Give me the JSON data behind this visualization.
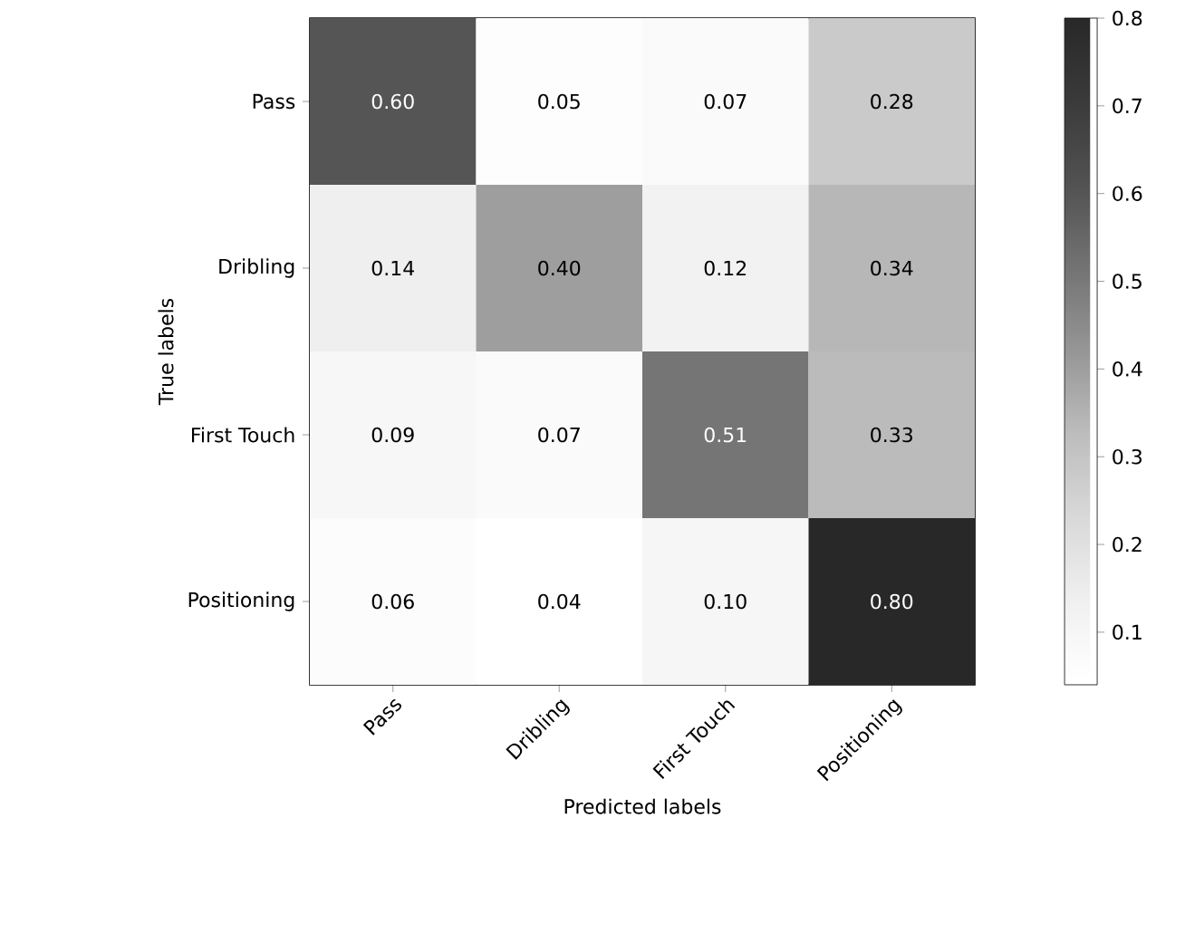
{
  "chart_data": {
    "type": "heatmap",
    "xlabel": "Predicted labels",
    "ylabel": "True labels",
    "categories": [
      "Pass",
      "Dribling",
      "First Touch",
      "Positioning"
    ],
    "y_categories": [
      "Pass",
      "Dribling",
      "First Touch",
      "Positioning"
    ],
    "cells": [
      [
        0.6,
        0.05,
        0.07,
        0.28
      ],
      [
        0.14,
        0.4,
        0.12,
        0.34
      ],
      [
        0.09,
        0.07,
        0.51,
        0.33
      ],
      [
        0.06,
        0.04,
        0.1,
        0.8
      ]
    ],
    "cell_labels": [
      [
        "0.60",
        "0.05",
        "0.07",
        "0.28"
      ],
      [
        "0.14",
        "0.40",
        "0.12",
        "0.34"
      ],
      [
        "0.09",
        "0.07",
        "0.51",
        "0.33"
      ],
      [
        "0.06",
        "0.04",
        "0.10",
        "0.80"
      ]
    ],
    "clim": [
      0.04,
      0.8
    ],
    "cticks": [
      0.1,
      0.2,
      0.3,
      0.4,
      0.5,
      0.6,
      0.7,
      0.8
    ]
  }
}
